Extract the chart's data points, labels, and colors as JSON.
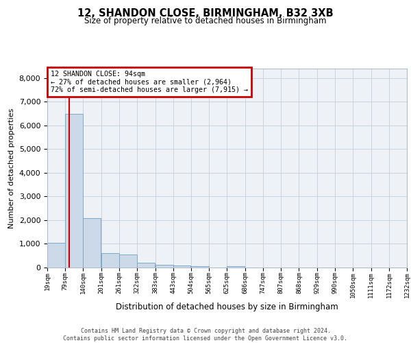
{
  "title1": "12, SHANDON CLOSE, BIRMINGHAM, B32 3XB",
  "title2": "Size of property relative to detached houses in Birmingham",
  "xlabel": "Distribution of detached houses by size in Birmingham",
  "ylabel": "Number of detached properties",
  "bin_edges": [
    19,
    79,
    140,
    201,
    261,
    322,
    383,
    443,
    504,
    565,
    625,
    686,
    747,
    807,
    868,
    929,
    990,
    1050,
    1111,
    1172,
    1232
  ],
  "bin_counts": [
    1050,
    6500,
    2100,
    600,
    560,
    200,
    120,
    80,
    60,
    5,
    50,
    10,
    5,
    5,
    5,
    5,
    5,
    5,
    5,
    5
  ],
  "bar_color": "#ccd9e8",
  "bar_edge_color": "#7aaac8",
  "bar_edge_width": 0.7,
  "red_line_x": 94,
  "red_line_color": "#cc0000",
  "annotation_text": "12 SHANDON CLOSE: 94sqm\n← 27% of detached houses are smaller (2,964)\n72% of semi-detached houses are larger (7,915) →",
  "annotation_box_color": "#cc0000",
  "ylim": [
    0,
    8400
  ],
  "yticks": [
    0,
    1000,
    2000,
    3000,
    4000,
    5000,
    6000,
    7000,
    8000
  ],
  "grid_color": "#c8d4e0",
  "background_color": "#eef2f7",
  "footer_text": "Contains HM Land Registry data © Crown copyright and database right 2024.\nContains public sector information licensed under the Open Government Licence v3.0.",
  "tick_labels": [
    "19sqm",
    "79sqm",
    "140sqm",
    "201sqm",
    "261sqm",
    "322sqm",
    "383sqm",
    "443sqm",
    "504sqm",
    "565sqm",
    "625sqm",
    "686sqm",
    "747sqm",
    "807sqm",
    "868sqm",
    "929sqm",
    "990sqm",
    "1050sqm",
    "1111sqm",
    "1172sqm",
    "1232sqm"
  ]
}
